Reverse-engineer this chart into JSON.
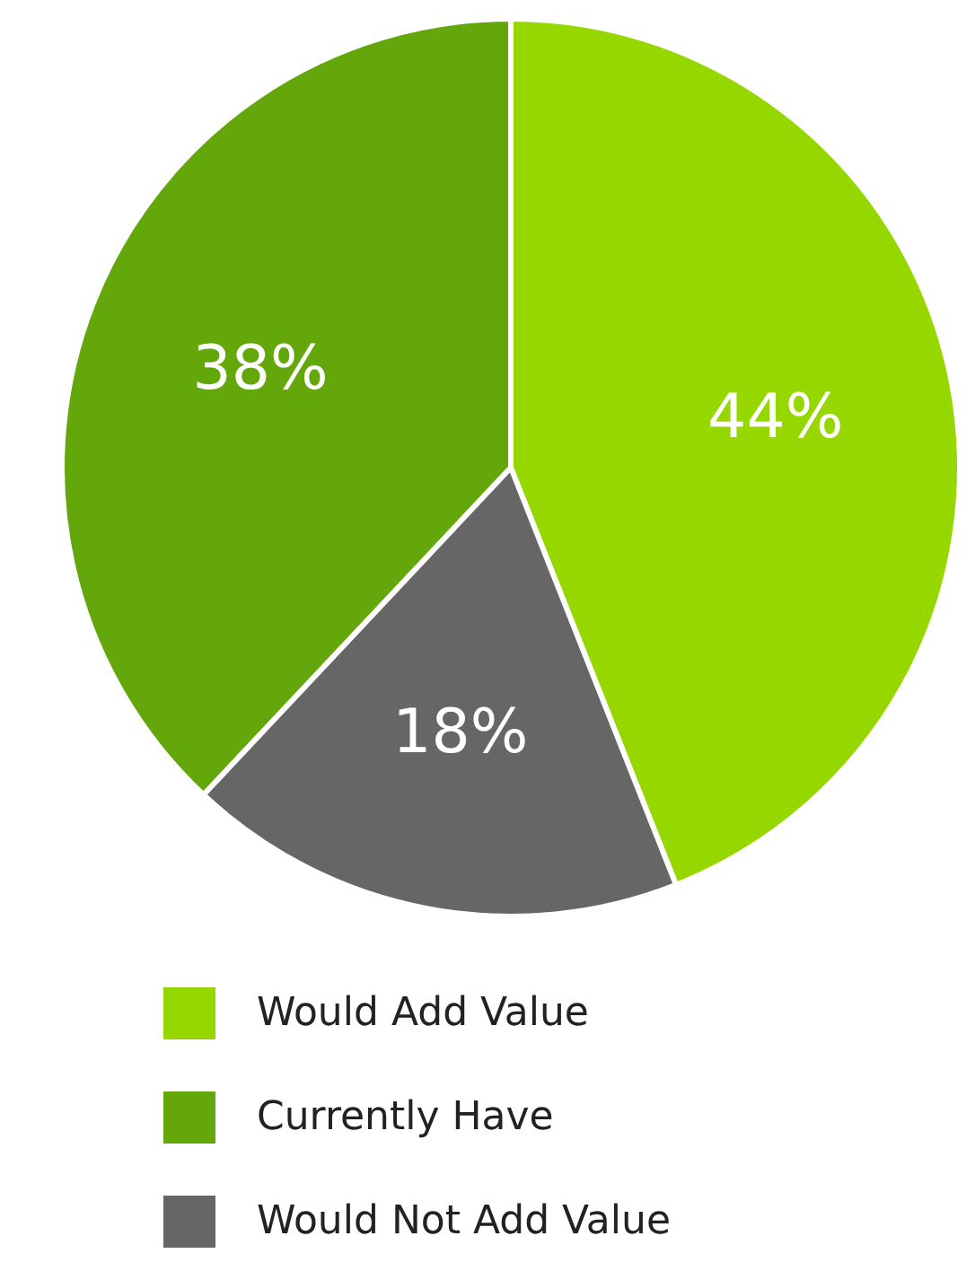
{
  "chart_data": {
    "type": "pie",
    "categories": [
      "Would Add Value",
      "Currently Have",
      "Would Not Add Value"
    ],
    "values": [
      44,
      38,
      18
    ],
    "value_labels": [
      "44%",
      "38%",
      "18%"
    ],
    "colors": [
      "#97d700",
      "#64a70b",
      "#666666"
    ],
    "legend": "bottom"
  }
}
